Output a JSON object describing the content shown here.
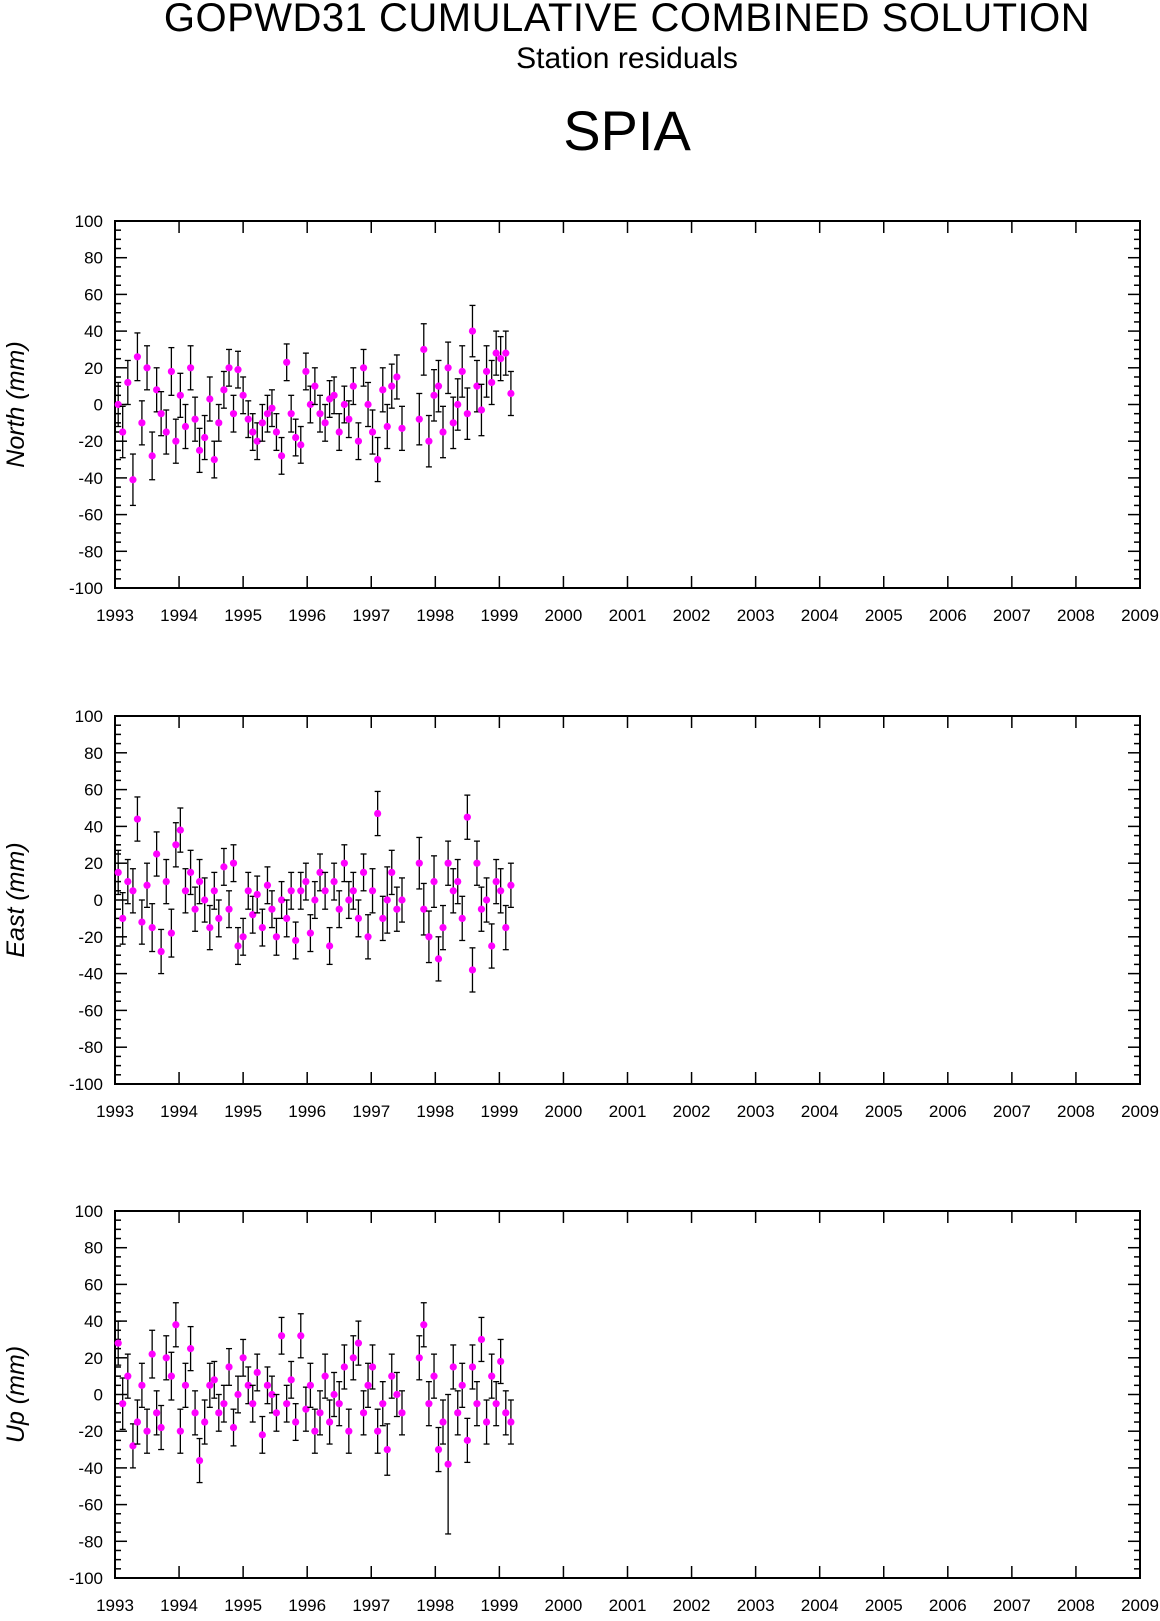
{
  "header": {
    "title": "GOPWD31 CUMULATIVE COMBINED SOLUTION",
    "subtitle": "Station residuals",
    "station": "SPIA"
  },
  "colors": {
    "marker": "#ff00ff",
    "errorbar": "#000000",
    "axis": "#000000"
  },
  "chart_data": [
    {
      "type": "scatter",
      "ylabel": "North (mm)",
      "xlim": [
        1993,
        2009
      ],
      "ylim": [
        -100,
        100
      ],
      "xticks": [
        "1993",
        "1994",
        "1995",
        "1996",
        "1997",
        "1998",
        "1999",
        "2000",
        "2001",
        "2002",
        "2003",
        "2004",
        "2005",
        "2006",
        "2007",
        "2008",
        "2009"
      ],
      "yticks": [
        "100",
        "80",
        "60",
        "40",
        "20",
        "0",
        "-20",
        "-40",
        "-60",
        "-80",
        "-100"
      ],
      "series": [
        {
          "x": [
            1993.05,
            1993.12,
            1993.2,
            1993.28,
            1993.35,
            1993.42,
            1993.5,
            1993.58,
            1993.65,
            1993.72,
            1993.8,
            1993.88,
            1993.95,
            1994.02,
            1994.1,
            1994.18,
            1994.25,
            1994.32,
            1994.4,
            1994.48,
            1994.55,
            1994.62,
            1994.7,
            1994.78,
            1994.85,
            1994.92,
            1995.0,
            1995.08,
            1995.15,
            1995.22,
            1995.3,
            1995.38,
            1995.45,
            1995.52,
            1995.6,
            1995.68,
            1995.75,
            1995.82,
            1995.9,
            1995.98,
            1996.05,
            1996.12,
            1996.2,
            1996.28,
            1996.35,
            1996.42,
            1996.5,
            1996.58,
            1996.65,
            1996.72,
            1996.8,
            1996.88,
            1996.95,
            1997.02,
            1997.1,
            1997.18,
            1997.25,
            1997.32,
            1997.4,
            1997.48,
            1997.75,
            1997.82,
            1997.9,
            1997.98,
            1998.05,
            1998.12,
            1998.2,
            1998.28,
            1998.35,
            1998.42,
            1998.5,
            1998.58,
            1998.65,
            1998.72,
            1998.8,
            1998.88,
            1998.95,
            1999.02,
            1999.1,
            1999.18
          ],
          "y": [
            0,
            -15,
            12,
            -41,
            26,
            -10,
            20,
            -28,
            8,
            -5,
            -15,
            18,
            -20,
            5,
            -12,
            20,
            -8,
            -25,
            -18,
            3,
            -30,
            -10,
            8,
            20,
            -5,
            19,
            5,
            -8,
            -15,
            -20,
            -10,
            -5,
            -2,
            -15,
            -28,
            23,
            -5,
            -18,
            -22,
            18,
            0,
            10,
            -5,
            -10,
            3,
            5,
            -15,
            0,
            -8,
            10,
            -20,
            20,
            0,
            -15,
            -30,
            8,
            -12,
            10,
            15,
            -13,
            -8,
            30,
            -20,
            5,
            10,
            -15,
            20,
            -10,
            0,
            18,
            -5,
            40,
            10,
            -3,
            18,
            12,
            28,
            25,
            28,
            6
          ],
          "err": [
            12,
            14,
            12,
            14,
            13,
            12,
            12,
            13,
            12,
            12,
            12,
            13,
            12,
            12,
            12,
            12,
            12,
            12,
            12,
            12,
            10,
            10,
            10,
            10,
            10,
            10,
            10,
            10,
            10,
            10,
            10,
            10,
            10,
            10,
            10,
            10,
            10,
            10,
            10,
            10,
            10,
            10,
            10,
            10,
            10,
            10,
            10,
            10,
            10,
            10,
            10,
            10,
            12,
            12,
            12,
            12,
            12,
            12,
            12,
            12,
            14,
            14,
            14,
            14,
            14,
            14,
            14,
            14,
            14,
            14,
            14,
            14,
            14,
            14,
            14,
            12,
            12,
            12,
            12,
            12
          ]
        }
      ]
    },
    {
      "type": "scatter",
      "ylabel": "East (mm)",
      "xlim": [
        1993,
        2009
      ],
      "ylim": [
        -100,
        100
      ],
      "xticks": [
        "1993",
        "1994",
        "1995",
        "1996",
        "1997",
        "1998",
        "1999",
        "2000",
        "2001",
        "2002",
        "2003",
        "2004",
        "2005",
        "2006",
        "2007",
        "2008",
        "2009"
      ],
      "yticks": [
        "100",
        "80",
        "60",
        "40",
        "20",
        "0",
        "-20",
        "-40",
        "-60",
        "-80",
        "-100"
      ],
      "series": [
        {
          "x": [
            1993.05,
            1993.12,
            1993.2,
            1993.28,
            1993.35,
            1993.42,
            1993.5,
            1993.58,
            1993.65,
            1993.72,
            1993.8,
            1993.88,
            1993.95,
            1994.02,
            1994.1,
            1994.18,
            1994.25,
            1994.32,
            1994.4,
            1994.48,
            1994.55,
            1994.62,
            1994.7,
            1994.78,
            1994.85,
            1994.92,
            1995.0,
            1995.08,
            1995.15,
            1995.22,
            1995.3,
            1995.38,
            1995.45,
            1995.52,
            1995.6,
            1995.68,
            1995.75,
            1995.82,
            1995.9,
            1995.98,
            1996.05,
            1996.12,
            1996.2,
            1996.28,
            1996.35,
            1996.42,
            1996.5,
            1996.58,
            1996.65,
            1996.72,
            1996.8,
            1996.88,
            1996.95,
            1997.02,
            1997.1,
            1997.18,
            1997.25,
            1997.32,
            1997.4,
            1997.48,
            1997.75,
            1997.82,
            1997.9,
            1997.98,
            1998.05,
            1998.12,
            1998.2,
            1998.28,
            1998.35,
            1998.42,
            1998.5,
            1998.58,
            1998.65,
            1998.72,
            1998.8,
            1998.88,
            1998.95,
            1999.02,
            1999.1,
            1999.18
          ],
          "y": [
            15,
            -10,
            10,
            5,
            44,
            -12,
            8,
            -15,
            25,
            -28,
            10,
            -18,
            30,
            38,
            5,
            15,
            -5,
            10,
            0,
            -15,
            5,
            -10,
            18,
            -5,
            20,
            -25,
            -20,
            5,
            -8,
            3,
            -15,
            8,
            -5,
            -20,
            0,
            -10,
            5,
            -22,
            5,
            10,
            -18,
            0,
            15,
            5,
            -25,
            10,
            -5,
            20,
            0,
            5,
            -10,
            15,
            -20,
            5,
            47,
            -10,
            0,
            15,
            -5,
            0,
            20,
            -5,
            -20,
            10,
            -32,
            -15,
            20,
            5,
            10,
            -10,
            45,
            -38,
            20,
            -5,
            0,
            -25,
            10,
            5,
            -15,
            8
          ],
          "err": [
            12,
            14,
            12,
            12,
            12,
            12,
            12,
            13,
            12,
            12,
            12,
            13,
            12,
            12,
            12,
            12,
            12,
            12,
            12,
            12,
            10,
            10,
            10,
            10,
            10,
            10,
            10,
            10,
            10,
            10,
            10,
            10,
            10,
            10,
            10,
            10,
            10,
            10,
            10,
            10,
            10,
            10,
            10,
            10,
            10,
            10,
            10,
            10,
            10,
            10,
            10,
            10,
            12,
            12,
            12,
            12,
            18,
            12,
            12,
            12,
            14,
            14,
            14,
            14,
            12,
            12,
            12,
            12,
            12,
            12,
            12,
            12,
            12,
            12,
            12,
            12,
            12,
            12,
            12,
            12
          ]
        }
      ]
    },
    {
      "type": "scatter",
      "ylabel": "Up (mm)",
      "xlim": [
        1993,
        2009
      ],
      "ylim": [
        -100,
        100
      ],
      "xticks": [
        "1993",
        "1994",
        "1995",
        "1996",
        "1997",
        "1998",
        "1999",
        "2000",
        "2001",
        "2002",
        "2003",
        "2004",
        "2005",
        "2006",
        "2007",
        "2008",
        "2009"
      ],
      "yticks": [
        "100",
        "80",
        "60",
        "40",
        "20",
        "0",
        "-20",
        "-40",
        "-60",
        "-80",
        "-100"
      ],
      "series": [
        {
          "x": [
            1993.05,
            1993.12,
            1993.2,
            1993.28,
            1993.35,
            1993.42,
            1993.5,
            1993.58,
            1993.65,
            1993.72,
            1993.8,
            1993.88,
            1993.95,
            1994.02,
            1994.1,
            1994.18,
            1994.25,
            1994.32,
            1994.4,
            1994.48,
            1994.55,
            1994.62,
            1994.7,
            1994.78,
            1994.85,
            1994.92,
            1995.0,
            1995.08,
            1995.15,
            1995.22,
            1995.3,
            1995.38,
            1995.45,
            1995.52,
            1995.6,
            1995.68,
            1995.75,
            1995.82,
            1995.9,
            1995.98,
            1996.05,
            1996.12,
            1996.2,
            1996.28,
            1996.35,
            1996.42,
            1996.5,
            1996.58,
            1996.65,
            1996.72,
            1996.8,
            1996.88,
            1996.95,
            1997.02,
            1997.1,
            1997.18,
            1997.25,
            1997.32,
            1997.4,
            1997.48,
            1997.75,
            1997.82,
            1997.9,
            1997.98,
            1998.05,
            1998.12,
            1998.2,
            1998.28,
            1998.35,
            1998.42,
            1998.5,
            1998.58,
            1998.65,
            1998.72,
            1998.8,
            1998.88,
            1998.95,
            1999.02,
            1999.1,
            1999.18
          ],
          "y": [
            28,
            -5,
            10,
            -28,
            -15,
            5,
            -20,
            22,
            -10,
            -18,
            20,
            10,
            38,
            -20,
            5,
            25,
            -10,
            -36,
            -15,
            5,
            8,
            -10,
            -5,
            15,
            -18,
            0,
            20,
            5,
            -5,
            12,
            -22,
            5,
            0,
            -10,
            32,
            -5,
            8,
            -15,
            32,
            -8,
            5,
            -20,
            -10,
            10,
            -15,
            0,
            -5,
            15,
            -20,
            20,
            28,
            -10,
            5,
            15,
            -20,
            -5,
            -30,
            10,
            0,
            -10,
            20,
            38,
            -5,
            10,
            -30,
            -15,
            -38,
            15,
            -10,
            5,
            -25,
            15,
            -5,
            30,
            -15,
            10,
            -5,
            18,
            -10,
            -15
          ],
          "err": [
            12,
            14,
            12,
            12,
            12,
            12,
            12,
            13,
            12,
            12,
            12,
            13,
            12,
            12,
            12,
            12,
            12,
            12,
            12,
            12,
            10,
            10,
            10,
            10,
            10,
            10,
            10,
            10,
            10,
            10,
            10,
            10,
            10,
            10,
            10,
            10,
            10,
            10,
            12,
            12,
            12,
            12,
            12,
            12,
            12,
            12,
            12,
            12,
            12,
            12,
            12,
            12,
            12,
            12,
            12,
            12,
            14,
            12,
            12,
            12,
            12,
            12,
            12,
            12,
            12,
            12,
            38,
            12,
            12,
            12,
            12,
            12,
            12,
            12,
            12,
            12,
            12,
            12,
            12,
            12
          ]
        }
      ]
    }
  ]
}
